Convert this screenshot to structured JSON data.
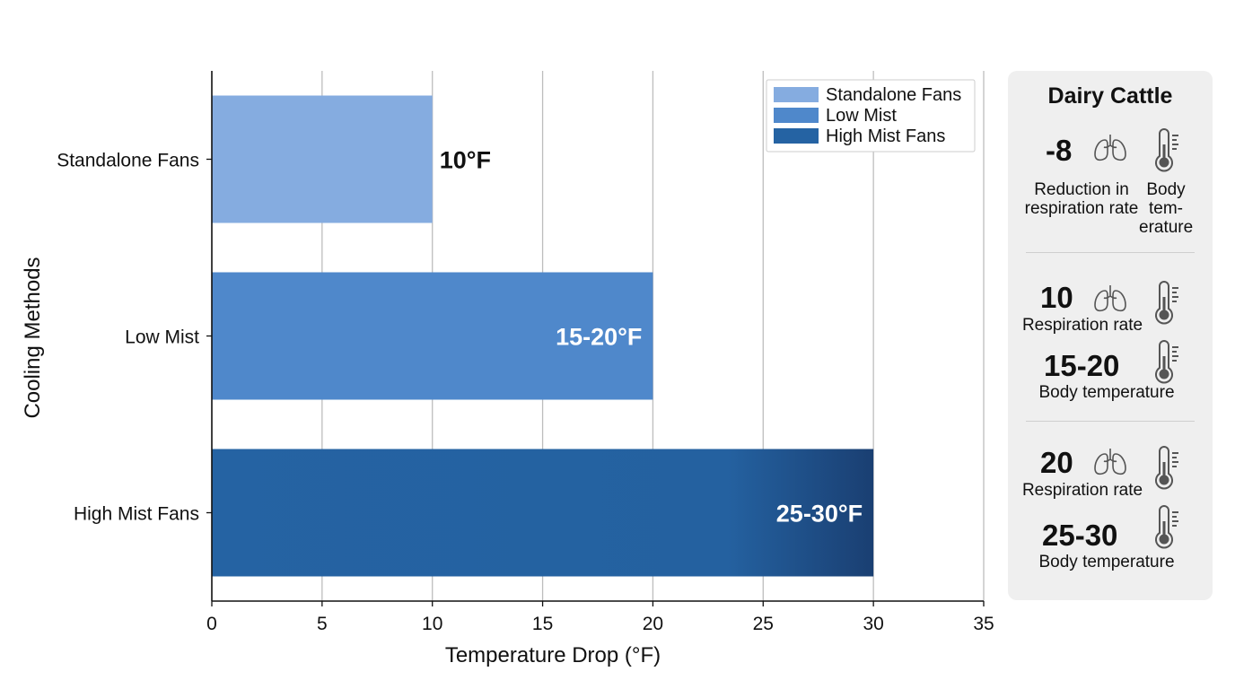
{
  "chart_data": {
    "type": "bar",
    "orientation": "horizontal",
    "categories": [
      "Standalone Fans",
      "Low Mist",
      "High Mist Fans"
    ],
    "values": [
      10,
      20,
      30
    ],
    "value_labels": [
      "10°F",
      "15-20°F",
      "25-30°F"
    ],
    "colors": [
      "#85ace0",
      "#4f88cb",
      "#2563a3"
    ],
    "xlabel": "Temperature Drop (°F)",
    "ylabel": "Cooling Methods",
    "xlim": [
      0,
      35
    ],
    "xticks": [
      0,
      5,
      10,
      15,
      20,
      25,
      30,
      35
    ],
    "grid": "vertical",
    "legend": {
      "placement": "top-right",
      "entries": [
        "Standalone Fans",
        "Low Mist",
        "High Mist Fans"
      ]
    }
  },
  "side_panel": {
    "title": "Dairy Cattle",
    "groups": [
      {
        "value": "-8",
        "respiration_caption": "Reduction in respiration rate",
        "temperature_caption": "Body tem- erature",
        "icons": [
          "lungs-icon",
          "thermometer-icon"
        ]
      },
      {
        "respiration_value": "10",
        "respiration_caption": "Respiration rate",
        "temperature_value": "15-20",
        "temperature_caption": "Body temperature",
        "icons": [
          "lungs-icon",
          "thermometer-icon"
        ]
      },
      {
        "respiration_value": "20",
        "respiration_caption": "Respiration rate",
        "temperature_value": "25-30",
        "temperature_caption": "Body temperature",
        "icons": [
          "lungs-icon",
          "thermometer-icon"
        ]
      }
    ]
  }
}
